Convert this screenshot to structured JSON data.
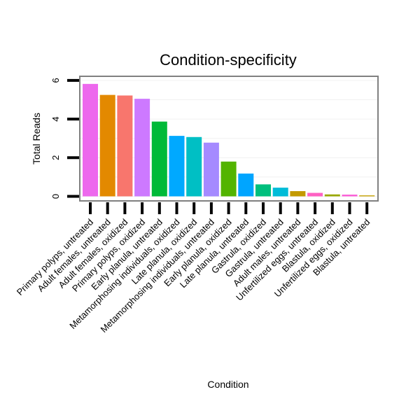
{
  "chart_data": {
    "type": "bar",
    "title": "Condition-specificity",
    "xlabel": "Condition",
    "ylabel": "Total Reads",
    "ylim": [
      0,
      6
    ],
    "yticks": [
      0,
      2,
      4,
      6
    ],
    "grid": true,
    "legend": "none",
    "categories": [
      "Primary polyps, untreated",
      "Adult females, untreated",
      "Adult females, oxidized",
      "Primary polyps, oxidized",
      "Early planula, untreated",
      "Metamorphosing individuals, oxidized",
      "Late planula, oxidized",
      "Metamorphosing individuals, untreated",
      "Early planula, oxidized",
      "Late planula, untreated",
      "Gastrula, oxidized",
      "Gastrula, untreated",
      "Adult males, untreated",
      "Unfertilized eggs, untreated",
      "Blastula, oxidized",
      "Unfertilized eggs, oxidized",
      "Blastula, untreated"
    ],
    "values": [
      5.82,
      5.25,
      5.22,
      5.05,
      3.87,
      3.13,
      3.07,
      2.78,
      1.8,
      1.18,
      0.62,
      0.45,
      0.27,
      0.18,
      0.1,
      0.09,
      0.05
    ],
    "colors": [
      "#ED68ED",
      "#E38900",
      "#F8766D",
      "#CD79FF",
      "#00BA38",
      "#00A9FF",
      "#00BFC4",
      "#A58AFF",
      "#53B400",
      "#00A5FF",
      "#00BF7D",
      "#00BCD8",
      "#C49A00",
      "#FF61C3",
      "#99A800",
      "#FB61D7",
      "#C4A000"
    ]
  }
}
